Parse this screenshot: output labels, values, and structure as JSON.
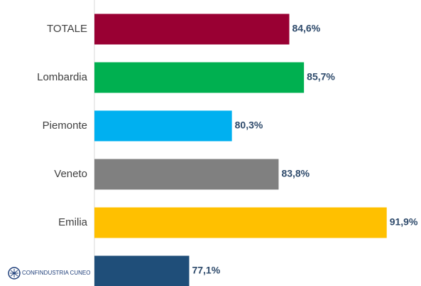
{
  "chart_data": {
    "type": "bar",
    "orientation": "horizontal",
    "categories": [
      "TOTALE",
      "Lombardia",
      "Piemonte",
      "Veneto",
      "Emilia",
      null
    ],
    "values": [
      84.6,
      85.7,
      80.3,
      83.8,
      91.9,
      77.1
    ],
    "value_labels": [
      "84,6%",
      "85,7%",
      "80,3%",
      "83,8%",
      "91,9%",
      "77,1%"
    ],
    "colors": [
      "#990033",
      "#00b050",
      "#00b0f0",
      "#808080",
      "#ffc000",
      "#1f4e79"
    ],
    "xlim": [
      70,
      95
    ],
    "grid": false
  },
  "logo": "CONFINDUSTRIA CUNEO"
}
